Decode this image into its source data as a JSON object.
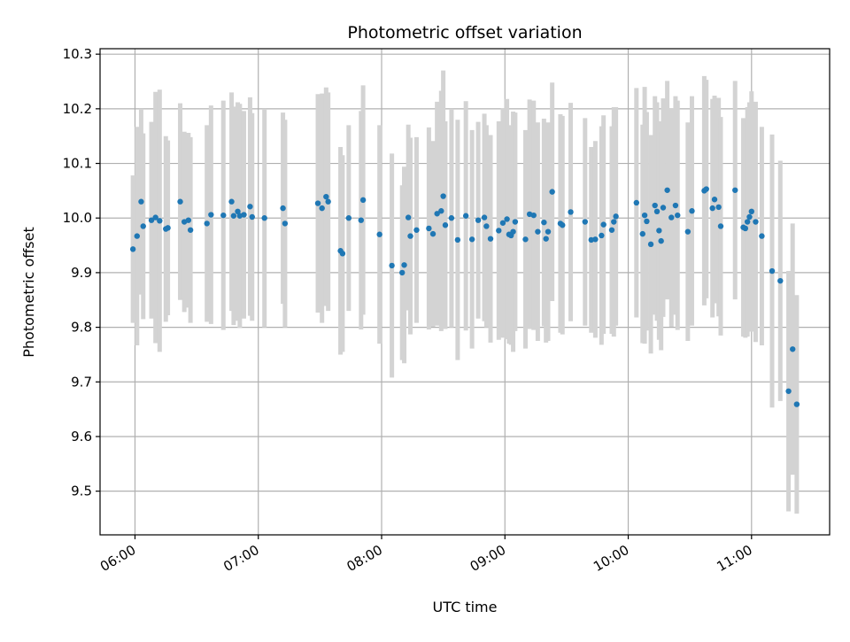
{
  "chart_data": {
    "type": "scatter",
    "title": "Photometric offset variation",
    "xlabel": "UTC time",
    "ylabel": "Photometric offset",
    "xlim": [
      "05:43",
      "11:38"
    ],
    "ylim": [
      9.42,
      10.31
    ],
    "xticks": [
      "06:00",
      "07:00",
      "08:00",
      "09:00",
      "10:00",
      "11:00"
    ],
    "yticks": [
      9.5,
      9.6,
      9.7,
      9.8,
      9.9,
      10.0,
      10.1,
      10.2,
      10.3
    ],
    "grid": true,
    "colors": {
      "point": "#1f77b4",
      "errorbar": "#d3d3d3",
      "grid": "#b0b0b0"
    },
    "series": [
      {
        "points": [
          {
            "x": "05:59",
            "y": 9.943,
            "err": 0.135
          },
          {
            "x": "06:01",
            "y": 9.967,
            "err": 0.2
          },
          {
            "x": "06:03",
            "y": 10.03,
            "err": 0.17
          },
          {
            "x": "06:04",
            "y": 9.985,
            "err": 0.17
          },
          {
            "x": "06:08",
            "y": 9.996,
            "err": 0.18
          },
          {
            "x": "06:10",
            "y": 10.001,
            "err": 0.23
          },
          {
            "x": "06:12",
            "y": 9.995,
            "err": 0.24
          },
          {
            "x": "06:15",
            "y": 9.98,
            "err": 0.17
          },
          {
            "x": "06:16",
            "y": 9.982,
            "err": 0.16
          },
          {
            "x": "06:22",
            "y": 10.03,
            "err": 0.18
          },
          {
            "x": "06:24",
            "y": 9.993,
            "err": 0.165
          },
          {
            "x": "06:26",
            "y": 9.996,
            "err": 0.16
          },
          {
            "x": "06:27",
            "y": 9.978,
            "err": 0.17
          },
          {
            "x": "06:35",
            "y": 9.99,
            "err": 0.18
          },
          {
            "x": "06:37",
            "y": 10.006,
            "err": 0.2
          },
          {
            "x": "06:43",
            "y": 10.005,
            "err": 0.21
          },
          {
            "x": "06:47",
            "y": 10.03,
            "err": 0.2
          },
          {
            "x": "06:48",
            "y": 10.004,
            "err": 0.2
          },
          {
            "x": "06:50",
            "y": 10.012,
            "err": 0.2
          },
          {
            "x": "06:51",
            "y": 10.004,
            "err": 0.205
          },
          {
            "x": "06:53",
            "y": 10.006,
            "err": 0.19
          },
          {
            "x": "06:56",
            "y": 10.021,
            "err": 0.2
          },
          {
            "x": "06:57",
            "y": 10.002,
            "err": 0.19
          },
          {
            "x": "07:03",
            "y": 10.0,
            "err": 0.2
          },
          {
            "x": "07:12",
            "y": 10.018,
            "err": 0.175
          },
          {
            "x": "07:13",
            "y": 9.99,
            "err": 0.19
          },
          {
            "x": "07:29",
            "y": 10.027,
            "err": 0.2
          },
          {
            "x": "07:31",
            "y": 10.018,
            "err": 0.21
          },
          {
            "x": "07:33",
            "y": 10.039,
            "err": 0.2
          },
          {
            "x": "07:34",
            "y": 10.03,
            "err": 0.2
          },
          {
            "x": "07:40",
            "y": 9.94,
            "err": 0.19
          },
          {
            "x": "07:41",
            "y": 9.935,
            "err": 0.18
          },
          {
            "x": "07:44",
            "y": 10.0,
            "err": 0.17
          },
          {
            "x": "07:50",
            "y": 9.996,
            "err": 0.2
          },
          {
            "x": "07:51",
            "y": 10.033,
            "err": 0.21
          },
          {
            "x": "07:59",
            "y": 9.97,
            "err": 0.2
          },
          {
            "x": "08:05",
            "y": 9.913,
            "err": 0.205
          },
          {
            "x": "08:10",
            "y": 9.9,
            "err": 0.16
          },
          {
            "x": "08:11",
            "y": 9.914,
            "err": 0.18
          },
          {
            "x": "08:13",
            "y": 10.001,
            "err": 0.17
          },
          {
            "x": "08:14",
            "y": 9.967,
            "err": 0.18
          },
          {
            "x": "08:17",
            "y": 9.978,
            "err": 0.17
          },
          {
            "x": "08:23",
            "y": 9.981,
            "err": 0.185
          },
          {
            "x": "08:25",
            "y": 9.971,
            "err": 0.17
          },
          {
            "x": "08:27",
            "y": 10.008,
            "err": 0.205
          },
          {
            "x": "08:29",
            "y": 10.013,
            "err": 0.22
          },
          {
            "x": "08:30",
            "y": 10.04,
            "err": 0.23
          },
          {
            "x": "08:31",
            "y": 9.987,
            "err": 0.19
          },
          {
            "x": "08:34",
            "y": 10.0,
            "err": 0.2
          },
          {
            "x": "08:37",
            "y": 9.96,
            "err": 0.22
          },
          {
            "x": "08:41",
            "y": 10.004,
            "err": 0.21
          },
          {
            "x": "08:44",
            "y": 9.961,
            "err": 0.2
          },
          {
            "x": "08:47",
            "y": 9.996,
            "err": 0.18
          },
          {
            "x": "08:50",
            "y": 10.001,
            "err": 0.19
          },
          {
            "x": "08:51",
            "y": 9.985,
            "err": 0.185
          },
          {
            "x": "08:53",
            "y": 9.962,
            "err": 0.19
          },
          {
            "x": "08:57",
            "y": 9.977,
            "err": 0.2
          },
          {
            "x": "08:59",
            "y": 9.991,
            "err": 0.21
          },
          {
            "x": "09:01",
            "y": 9.998,
            "err": 0.22
          },
          {
            "x": "09:02",
            "y": 9.97,
            "err": 0.2
          },
          {
            "x": "09:03",
            "y": 9.968,
            "err": 0.2
          },
          {
            "x": "09:04",
            "y": 9.975,
            "err": 0.22
          },
          {
            "x": "09:05",
            "y": 9.993,
            "err": 0.2
          },
          {
            "x": "09:10",
            "y": 9.961,
            "err": 0.2
          },
          {
            "x": "09:12",
            "y": 10.007,
            "err": 0.21
          },
          {
            "x": "09:14",
            "y": 10.005,
            "err": 0.21
          },
          {
            "x": "09:16",
            "y": 9.975,
            "err": 0.2
          },
          {
            "x": "09:19",
            "y": 9.992,
            "err": 0.19
          },
          {
            "x": "09:20",
            "y": 9.962,
            "err": 0.19
          },
          {
            "x": "09:21",
            "y": 9.975,
            "err": 0.2
          },
          {
            "x": "09:23",
            "y": 10.048,
            "err": 0.2
          },
          {
            "x": "09:27",
            "y": 9.99,
            "err": 0.2
          },
          {
            "x": "09:28",
            "y": 9.987,
            "err": 0.2
          },
          {
            "x": "09:32",
            "y": 10.011,
            "err": 0.2
          },
          {
            "x": "09:39",
            "y": 9.993,
            "err": 0.19
          },
          {
            "x": "09:42",
            "y": 9.96,
            "err": 0.17
          },
          {
            "x": "09:44",
            "y": 9.961,
            "err": 0.18
          },
          {
            "x": "09:47",
            "y": 9.968,
            "err": 0.2
          },
          {
            "x": "09:48",
            "y": 9.988,
            "err": 0.2
          },
          {
            "x": "09:52",
            "y": 9.978,
            "err": 0.19
          },
          {
            "x": "09:53",
            "y": 9.993,
            "err": 0.21
          },
          {
            "x": "09:54",
            "y": 10.003,
            "err": 0.2
          },
          {
            "x": "10:04",
            "y": 10.028,
            "err": 0.21
          },
          {
            "x": "10:07",
            "y": 9.971,
            "err": 0.2
          },
          {
            "x": "10:08",
            "y": 10.005,
            "err": 0.235
          },
          {
            "x": "10:09",
            "y": 9.994,
            "err": 0.2
          },
          {
            "x": "10:11",
            "y": 9.952,
            "err": 0.2
          },
          {
            "x": "10:13",
            "y": 10.023,
            "err": 0.2
          },
          {
            "x": "10:14",
            "y": 10.012,
            "err": 0.2
          },
          {
            "x": "10:15",
            "y": 9.977,
            "err": 0.2
          },
          {
            "x": "10:16",
            "y": 9.958,
            "err": 0.2
          },
          {
            "x": "10:17",
            "y": 10.019,
            "err": 0.2
          },
          {
            "x": "10:19",
            "y": 10.051,
            "err": 0.2
          },
          {
            "x": "10:21",
            "y": 10.001,
            "err": 0.2
          },
          {
            "x": "10:23",
            "y": 10.023,
            "err": 0.2
          },
          {
            "x": "10:24",
            "y": 10.005,
            "err": 0.21
          },
          {
            "x": "10:29",
            "y": 9.975,
            "err": 0.2
          },
          {
            "x": "10:31",
            "y": 10.013,
            "err": 0.21
          },
          {
            "x": "10:37",
            "y": 10.05,
            "err": 0.21
          },
          {
            "x": "10:38",
            "y": 10.053,
            "err": 0.2
          },
          {
            "x": "10:41",
            "y": 10.018,
            "err": 0.2
          },
          {
            "x": "10:42",
            "y": 10.034,
            "err": 0.19
          },
          {
            "x": "10:44",
            "y": 10.02,
            "err": 0.2
          },
          {
            "x": "10:45",
            "y": 9.985,
            "err": 0.2
          },
          {
            "x": "10:52",
            "y": 10.051,
            "err": 0.2
          },
          {
            "x": "10:56",
            "y": 9.983,
            "err": 0.2
          },
          {
            "x": "10:57",
            "y": 9.981,
            "err": 0.2
          },
          {
            "x": "10:58",
            "y": 9.993,
            "err": 0.21
          },
          {
            "x": "10:59",
            "y": 10.002,
            "err": 0.21
          },
          {
            "x": "11:00",
            "y": 10.012,
            "err": 0.22
          },
          {
            "x": "11:02",
            "y": 9.993,
            "err": 0.22
          },
          {
            "x": "11:05",
            "y": 9.967,
            "err": 0.2
          },
          {
            "x": "11:10",
            "y": 9.903,
            "err": 0.25
          },
          {
            "x": "11:14",
            "y": 9.885,
            "err": 0.22
          },
          {
            "x": "11:18",
            "y": 9.683,
            "err": 0.22
          },
          {
            "x": "11:20",
            "y": 9.76,
            "err": 0.23
          },
          {
            "x": "11:22",
            "y": 9.659,
            "err": 0.2
          }
        ]
      }
    ]
  }
}
